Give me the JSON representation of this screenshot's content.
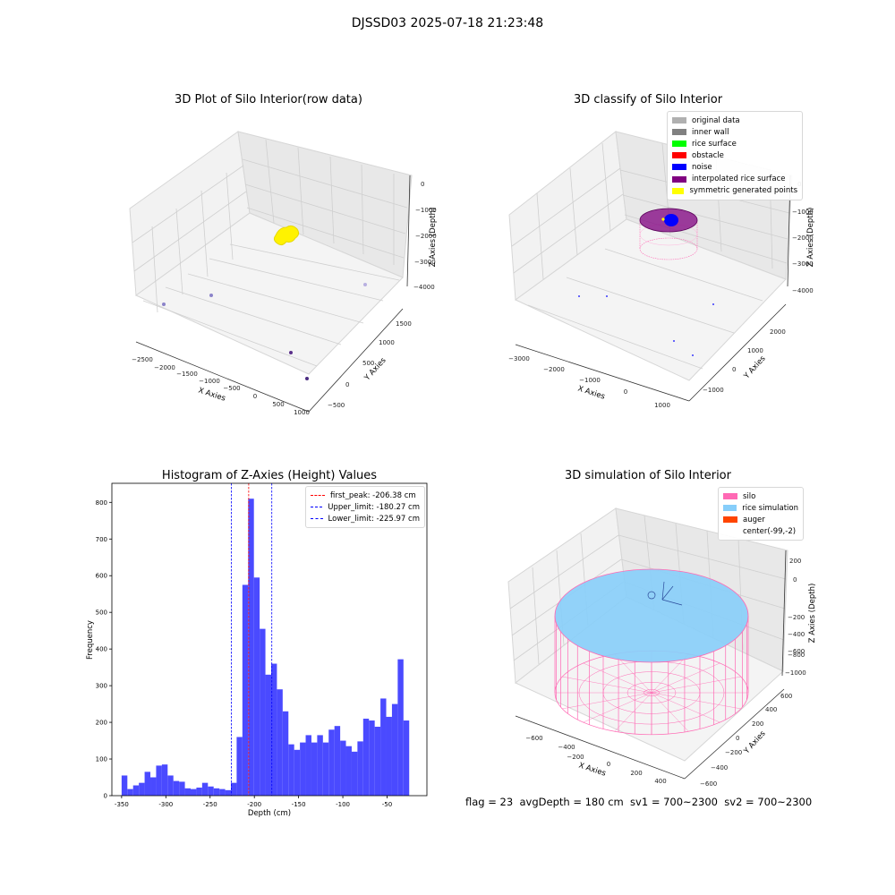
{
  "figure": {
    "suptitle": "DJSSD03 2025-07-18 21:23:48",
    "footer": "flag = 23  avgDepth = 180 cm  sv1 = 700~2300  sv2 = 700~2300"
  },
  "colors": {
    "raw_points": "#fff200",
    "original_data": "#b0b0b0",
    "inner_wall": "#808080",
    "rice_surface": "#00ff00",
    "obstacle": "#ff0000",
    "noise": "#0000ff",
    "interpolated_rice_surface": "#800080",
    "symmetric_generated_points": "#ffff00",
    "histogram_bars": "#4a4aff",
    "first_peak_line": "#ff0000",
    "limit_lines": "#0000ff",
    "silo": "#ff69b4",
    "rice_simulation": "#87cefa",
    "auger": "#ff4500"
  },
  "chart_data": [
    {
      "type": "scatter",
      "title": "3D Plot of Silo Interior(row data)",
      "xlabel": "X Axies",
      "ylabel": "Y Axies",
      "zlabel": "Z Axies (Depth)",
      "xticks": [
        "−2500",
        "−2000",
        "−1500",
        "−1000",
        "−500",
        "0",
        "500",
        "1000"
      ],
      "yticks": [
        "−500",
        "0",
        "500",
        "1000",
        "1500"
      ],
      "zticks": [
        "0",
        "−1000",
        "−2000",
        "−3000",
        "−4000"
      ],
      "xlim": [
        -2700,
        1100
      ],
      "ylim": [
        -600,
        1700
      ],
      "zlim": [
        -4500,
        0
      ],
      "grid": true
    },
    {
      "type": "scatter",
      "title": "3D classify of Silo Interior",
      "xlabel": "X Axies",
      "ylabel": "Y Axies",
      "zlabel": "Z Axies (Depth)",
      "xticks": [
        "−3000",
        "−2000",
        "−1000",
        "0",
        "1000"
      ],
      "yticks": [
        "−1000",
        "0",
        "1000",
        "2000"
      ],
      "zticks": [
        "0",
        "−1000",
        "−2000",
        "−3000",
        "−4000"
      ],
      "legend": [
        "original data",
        "inner wall",
        "rice surface",
        "obstacle",
        "noise",
        "interpolated rice surface",
        "symmetric generated points"
      ],
      "legend_position": "top-right",
      "grid": true
    },
    {
      "type": "bar",
      "title": "Histogram of Z-Axies (Height) Values",
      "xlabel": "Depth (cm)",
      "ylabel": "Frequency",
      "xticks": [
        -350,
        -300,
        -250,
        -200,
        -150,
        -100,
        -50
      ],
      "yticks": [
        0,
        100,
        200,
        300,
        400,
        500,
        600,
        700,
        800
      ],
      "xlim": [
        -361,
        -5
      ],
      "ylim": [
        0,
        852
      ],
      "bin_start": -350,
      "bin_width": 6.5,
      "values": [
        55,
        18,
        28,
        35,
        65,
        50,
        82,
        85,
        55,
        40,
        38,
        20,
        18,
        22,
        35,
        25,
        20,
        18,
        15,
        35,
        160,
        575,
        810,
        595,
        455,
        330,
        360,
        290,
        230,
        140,
        125,
        145,
        165,
        145,
        165,
        145,
        180,
        190,
        150,
        135,
        120,
        148,
        210,
        205,
        188,
        265,
        215,
        250,
        372,
        205
      ],
      "lines": [
        {
          "name": "first_peak: -206.38 cm",
          "x": -206.38,
          "color": "#ff0000"
        },
        {
          "name": "Upper_limit: -180.27 cm",
          "x": -180.27,
          "color": "#0000ff"
        },
        {
          "name": "Lower_limit: -225.97 cm",
          "x": -225.97,
          "color": "#0000ff"
        }
      ],
      "legend_position": "top-right",
      "grid": false
    },
    {
      "type": "area",
      "title": "3D simulation of Silo Interior",
      "xlabel": "X Axies",
      "ylabel": "Y Axies",
      "zlabel": "Z Axies (Depth)",
      "xticks": [
        "−600",
        "−400",
        "−200",
        "0",
        "200",
        "400"
      ],
      "yticks": [
        "−600",
        "−400",
        "−200",
        "0",
        "200",
        "400",
        "600"
      ],
      "zticks": [
        "200",
        "0",
        "−200",
        "−400",
        "−600",
        "−800",
        "−1000"
      ],
      "legend": [
        "silo",
        "rice simulation",
        "auger",
        "center(-99,-2)"
      ],
      "legend_position": "top-right",
      "grid": true
    }
  ]
}
